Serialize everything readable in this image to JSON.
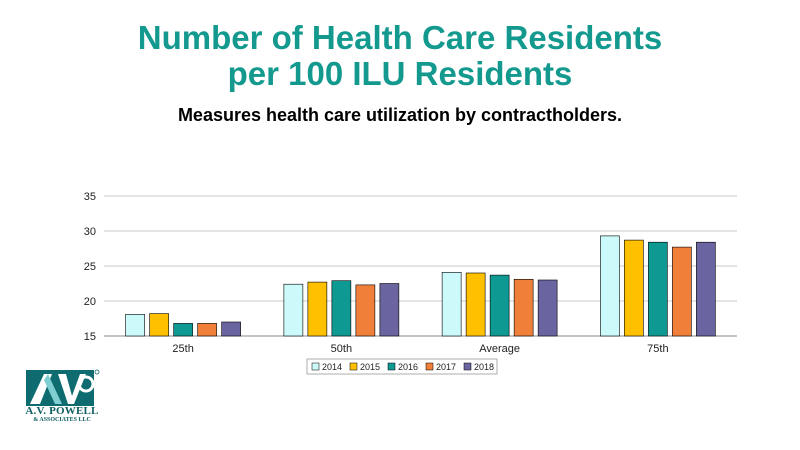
{
  "header": {
    "title_line1": "Number of Health Care Residents",
    "title_line2": "per 100 ILU Residents",
    "subtitle": "Measures health care utilization by contractholders."
  },
  "logo": {
    "monogram": "AVP",
    "name": "A.V. POWELL",
    "sub": "& ASSOCIATES LLC"
  },
  "chart_data": {
    "type": "bar",
    "categories": [
      "25th",
      "50th",
      "Average",
      "75th"
    ],
    "series": [
      {
        "name": "2014",
        "color": "#ccfafa",
        "values": [
          18.1,
          22.4,
          24.1,
          29.3
        ]
      },
      {
        "name": "2015",
        "color": "#ffc000",
        "values": [
          18.2,
          22.7,
          24.0,
          28.7
        ]
      },
      {
        "name": "2016",
        "color": "#0e9992",
        "values": [
          16.8,
          22.9,
          23.7,
          28.4
        ]
      },
      {
        "name": "2017",
        "color": "#f07f39",
        "values": [
          16.8,
          22.3,
          23.1,
          27.7
        ]
      },
      {
        "name": "2018",
        "color": "#6a64a0",
        "values": [
          17.0,
          22.5,
          23.0,
          28.4
        ]
      }
    ],
    "y_ticks": [
      15,
      20,
      25,
      30,
      35
    ],
    "ylim": [
      15,
      35
    ],
    "grid": true,
    "legend_position": "bottom"
  }
}
